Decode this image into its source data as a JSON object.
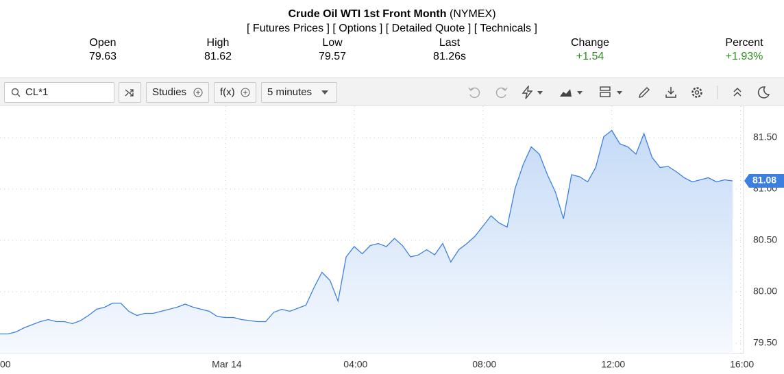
{
  "header": {
    "title": "Crude Oil WTI 1st Front Month",
    "exchange": "(NYMEX)",
    "links": [
      "[ Futures Prices ]",
      "[ Options ]",
      "[ Detailed Quote ]",
      "[ Technicals ]"
    ],
    "stats": [
      {
        "label": "Open",
        "value": "79.63"
      },
      {
        "label": "High",
        "value": "81.62"
      },
      {
        "label": "Low",
        "value": "79.57"
      },
      {
        "label": "Last",
        "value": "81.26s"
      },
      {
        "label": "Change",
        "value": "+1.54"
      },
      {
        "label": "Percent",
        "value": "+1.93%"
      }
    ]
  },
  "toolbar": {
    "search": "CL*1",
    "studies": "Studies",
    "fx": "f(x)",
    "interval": "5 minutes"
  },
  "chart_data": {
    "type": "line",
    "color": "#3d7fe0",
    "values": [
      79.59,
      79.59,
      79.61,
      79.65,
      79.68,
      79.71,
      79.73,
      79.71,
      79.71,
      79.69,
      79.72,
      79.77,
      79.83,
      79.85,
      79.89,
      79.89,
      79.81,
      79.77,
      79.79,
      79.79,
      79.81,
      79.83,
      79.85,
      79.88,
      79.85,
      79.83,
      79.81,
      79.76,
      79.75,
      79.75,
      79.73,
      79.72,
      79.71,
      79.71,
      79.8,
      79.83,
      79.81,
      79.84,
      79.87,
      80.04,
      80.19,
      80.11,
      79.91,
      80.34,
      80.44,
      80.37,
      80.45,
      80.47,
      80.44,
      80.52,
      80.45,
      80.34,
      80.36,
      80.41,
      80.36,
      80.47,
      80.29,
      80.41,
      80.47,
      80.54,
      80.64,
      80.74,
      80.67,
      80.63,
      81.01,
      81.24,
      81.41,
      81.34,
      81.14,
      80.97,
      80.71,
      81.14,
      81.12,
      81.07,
      81.21,
      81.51,
      81.57,
      81.44,
      81.41,
      81.34,
      81.54,
      81.31,
      81.21,
      81.22,
      81.17,
      81.11,
      81.07,
      81.09,
      81.11,
      81.07,
      81.09,
      81.08
    ],
    "current_price": 81.08,
    "xlim": [
      0,
      92.2
    ],
    "xticks": [
      {
        "value": 0,
        "label": "00"
      },
      {
        "value": 28,
        "label": "Mar 14"
      },
      {
        "value": 44,
        "label": "04:00"
      },
      {
        "value": 60,
        "label": "08:00"
      },
      {
        "value": 76,
        "label": "12:00"
      },
      {
        "value": 92,
        "label": "16:00"
      }
    ],
    "ylim": [
      79.4,
      81.8
    ],
    "yticks": [
      {
        "value": 79.5,
        "label": "79.50"
      },
      {
        "value": 80,
        "label": "80.00"
      },
      {
        "value": 80.5,
        "label": "80.50"
      },
      {
        "value": 81,
        "label": "81.00"
      },
      {
        "value": 81.5,
        "label": "81.50"
      }
    ],
    "grid": true
  }
}
